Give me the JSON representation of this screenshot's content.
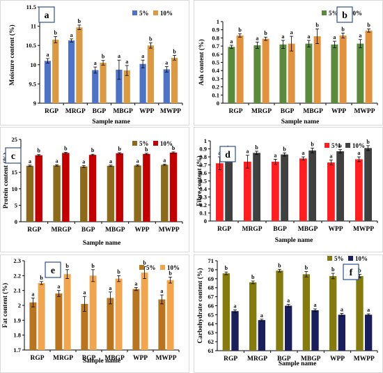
{
  "chart_data": [
    {
      "panel": "a",
      "type": "bar",
      "categories": [
        "RGP",
        "MRGP",
        "BGP",
        "MBGP",
        "WPP",
        "MWPP"
      ],
      "ylabel": "Moisture content (%)",
      "xlabel": "Sample name",
      "ylim": [
        9,
        11.5
      ],
      "yticks": [
        9,
        9.5,
        10,
        10.5,
        11,
        11.5
      ],
      "ytick_labels": [
        "9",
        "9.5",
        "10",
        "10.5",
        "11",
        "11.5"
      ],
      "legend": "top-right",
      "series": [
        {
          "name": "5%",
          "color": "#4f73c4",
          "values": [
            10.1,
            10.63,
            9.86,
            9.87,
            10.02,
            9.88
          ],
          "errors": [
            0.06,
            0.04,
            0.08,
            0.25,
            0.1,
            0.07
          ],
          "labels": [
            "a",
            "a",
            "a",
            "a",
            "a",
            "a"
          ]
        },
        {
          "name": "10%",
          "color": "#d99a43",
          "values": [
            10.65,
            10.97,
            10.05,
            9.85,
            10.5,
            10.18
          ],
          "errors": [
            0.08,
            0.06,
            0.06,
            0.13,
            0.07,
            0.06
          ],
          "labels": [
            "b",
            "b",
            "b",
            "a",
            "b",
            "b"
          ]
        }
      ]
    },
    {
      "panel": "b",
      "type": "bar",
      "categories": [
        "RGP",
        "MRGP",
        "BGP",
        "MBGP",
        "WPP",
        "MWPP"
      ],
      "ylabel": "Ash content (%)",
      "xlabel": "Sample name",
      "ylim": [
        0,
        1
      ],
      "yticks": [
        0,
        0.1,
        0.2,
        0.3,
        0.4,
        0.5,
        0.6,
        0.7,
        0.8,
        0.9,
        1
      ],
      "ytick_labels": [
        "0",
        "0.1",
        "0.2",
        "0.3",
        "0.4",
        "0.5",
        "0.6",
        "0.7",
        "0.8",
        "0.9",
        "1"
      ],
      "legend": "top-right",
      "series": [
        {
          "name": "5%",
          "color": "#5b8a3c",
          "values": [
            0.69,
            0.71,
            0.72,
            0.73,
            0.72,
            0.73
          ],
          "errors": [
            0.02,
            0.04,
            0.05,
            0.04,
            0.04,
            0.05
          ],
          "labels": [
            "a",
            "a",
            "a",
            "a",
            "a",
            "a"
          ]
        },
        {
          "name": "10%",
          "color": "#e0923f",
          "values": [
            0.83,
            0.79,
            0.73,
            0.82,
            0.83,
            0.89
          ],
          "errors": [
            0.02,
            0.02,
            0.09,
            0.09,
            0.03,
            0.02
          ],
          "labels": [
            "b",
            "b",
            "a",
            "b",
            "b",
            "b"
          ]
        }
      ]
    },
    {
      "panel": "c",
      "type": "bar",
      "categories": [
        "RGP",
        "MRGP",
        "BGP",
        "MBGP",
        "WPP",
        "MWPP"
      ],
      "ylabel": "Protein content (%)",
      "xlabel": "Sample name",
      "ylim": [
        0,
        25
      ],
      "yticks": [
        0,
        5,
        10,
        15,
        20,
        25
      ],
      "ytick_labels": [
        "0",
        "5",
        "10",
        "15",
        "20",
        "25"
      ],
      "legend": "top-right",
      "series": [
        {
          "name": "5%",
          "color": "#8c6a1c",
          "values": [
            17.0,
            17.1,
            16.8,
            17.0,
            17.1,
            17.3
          ],
          "errors": [
            0.2,
            0.2,
            0.3,
            0.2,
            0.2,
            0.2
          ],
          "labels": [
            "a",
            "a",
            "a",
            "a",
            "a",
            "a"
          ]
        },
        {
          "name": "10%",
          "color": "#c00000",
          "values": [
            20.2,
            20.9,
            20.3,
            20.8,
            20.6,
            21.0
          ],
          "errors": [
            0.2,
            0.2,
            0.2,
            0.2,
            0.2,
            0.2
          ],
          "labels": [
            "b",
            "b",
            "b",
            "b",
            "b",
            "b"
          ]
        }
      ]
    },
    {
      "panel": "d",
      "type": "bar",
      "categories": [
        "RGP",
        "MRGP",
        "BGP",
        "MBGP",
        "WPP",
        "MWPP"
      ],
      "ylabel": "Fibre content (%)",
      "xlabel": "Sample name",
      "ylim": [
        0,
        1
      ],
      "yticks": [
        0,
        0.1,
        0.2,
        0.3,
        0.4,
        0.5,
        0.6,
        0.7,
        0.8,
        0.9,
        1
      ],
      "ytick_labels": [
        "0",
        "0.1",
        "0.2",
        "0.3",
        "0.4",
        "0.5",
        "0.6",
        "0.7",
        "0.8",
        "0.9",
        "1"
      ],
      "legend": "top-right",
      "series": [
        {
          "name": "5%",
          "color": "#ff1f1f",
          "values": [
            0.72,
            0.74,
            0.74,
            0.78,
            0.73,
            0.77
          ],
          "errors": [
            0.08,
            0.08,
            0.03,
            0.02,
            0.03,
            0.03
          ],
          "labels": [
            "a",
            "a",
            "a",
            "a",
            "a",
            "a"
          ]
        },
        {
          "name": "10%",
          "color": "#404040",
          "values": [
            0.84,
            0.85,
            0.83,
            0.88,
            0.87,
            0.91
          ],
          "errors": [
            0.02,
            0.02,
            0.02,
            0.03,
            0.02,
            0.03
          ],
          "labels": [
            "b",
            "b",
            "b",
            "b",
            "b",
            "b"
          ]
        }
      ]
    },
    {
      "panel": "e",
      "type": "bar",
      "categories": [
        "RGP",
        "MRGP",
        "BGP",
        "MBGP",
        "WPP",
        "MWPP"
      ],
      "ylabel": "Fat content (%)",
      "xlabel": "Sample name",
      "ylim": [
        1.7,
        2.3
      ],
      "yticks": [
        1.7,
        1.8,
        1.9,
        2,
        2.1,
        2.2,
        2.3
      ],
      "ytick_labels": [
        "1.7",
        "1.8",
        "1.9",
        "2",
        "2.1",
        "2.2",
        "2.3"
      ],
      "legend": "top-right",
      "series": [
        {
          "name": "5%",
          "color": "#b8741e",
          "values": [
            2.02,
            2.08,
            2.01,
            2.05,
            2.11,
            2.04
          ],
          "errors": [
            0.03,
            0.02,
            0.05,
            0.04,
            0.01,
            0.03
          ],
          "labels": [
            "a",
            "a",
            "a",
            "a",
            "a",
            "a"
          ]
        },
        {
          "name": "10%",
          "color": "#f0a650",
          "values": [
            2.15,
            2.21,
            2.2,
            2.18,
            2.22,
            2.17
          ],
          "errors": [
            0.01,
            0.03,
            0.04,
            0.02,
            0.04,
            0.02
          ],
          "labels": [
            "b",
            "b",
            "b",
            "b",
            "b",
            "b"
          ]
        }
      ]
    },
    {
      "panel": "f",
      "type": "bar",
      "categories": [
        "RGP",
        "MRGP",
        "BGP",
        "MBGP",
        "WPP",
        "MWPP"
      ],
      "ylabel": "Carbohydrate content (%)",
      "xlabel": "Sample name",
      "ylim": [
        61,
        71
      ],
      "yticks": [
        61,
        62,
        63,
        64,
        65,
        66,
        67,
        68,
        69,
        70,
        71
      ],
      "ytick_labels": [
        "61",
        "62",
        "63",
        "64",
        "65",
        "66",
        "67",
        "68",
        "69",
        "70",
        "71"
      ],
      "legend": "top-right",
      "series": [
        {
          "name": "5%",
          "color": "#857a0e",
          "values": [
            69.6,
            68.6,
            69.9,
            69.5,
            69.3,
            69.3
          ],
          "errors": [
            0.15,
            0.15,
            0.15,
            0.3,
            0.3,
            0.2
          ],
          "labels": [
            "b",
            "b",
            "b",
            "b",
            "b",
            "b"
          ]
        },
        {
          "name": "10%",
          "color": "#1a1f5c",
          "values": [
            65.4,
            64.4,
            66.0,
            65.5,
            65.0,
            65.0
          ],
          "errors": [
            0.15,
            0.1,
            0.15,
            0.15,
            0.15,
            0.1
          ],
          "labels": [
            "a",
            "a",
            "a",
            "a",
            "a",
            "a"
          ]
        }
      ]
    }
  ]
}
